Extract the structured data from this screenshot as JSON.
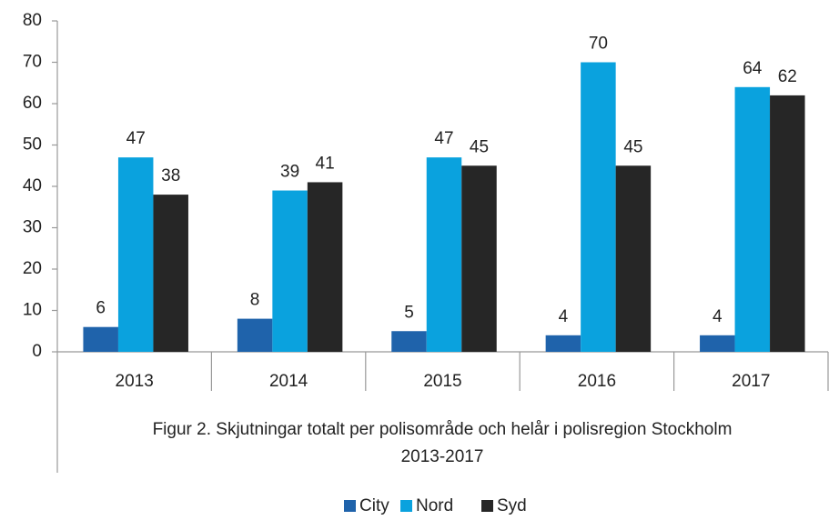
{
  "chart_data": {
    "type": "bar",
    "categories": [
      "2013",
      "2014",
      "2015",
      "2016",
      "2017"
    ],
    "series": [
      {
        "name": "City",
        "color": "#1f63ab",
        "values": [
          6,
          8,
          5,
          4,
          4
        ]
      },
      {
        "name": "Nord",
        "color": "#0aa2de",
        "values": [
          47,
          39,
          47,
          70,
          64
        ]
      },
      {
        "name": "Syd",
        "color": "#262626",
        "values": [
          38,
          41,
          45,
          45,
          62
        ]
      }
    ],
    "caption": [
      "Figur 2. Skjutningar totalt per polisområde och helår i polisregion Stockholm",
      "2013-2017"
    ],
    "ylim": [
      0,
      80
    ],
    "yticks": [
      0,
      10,
      20,
      30,
      40,
      50,
      60,
      70,
      80
    ],
    "grid": false,
    "legend": "bottom"
  }
}
